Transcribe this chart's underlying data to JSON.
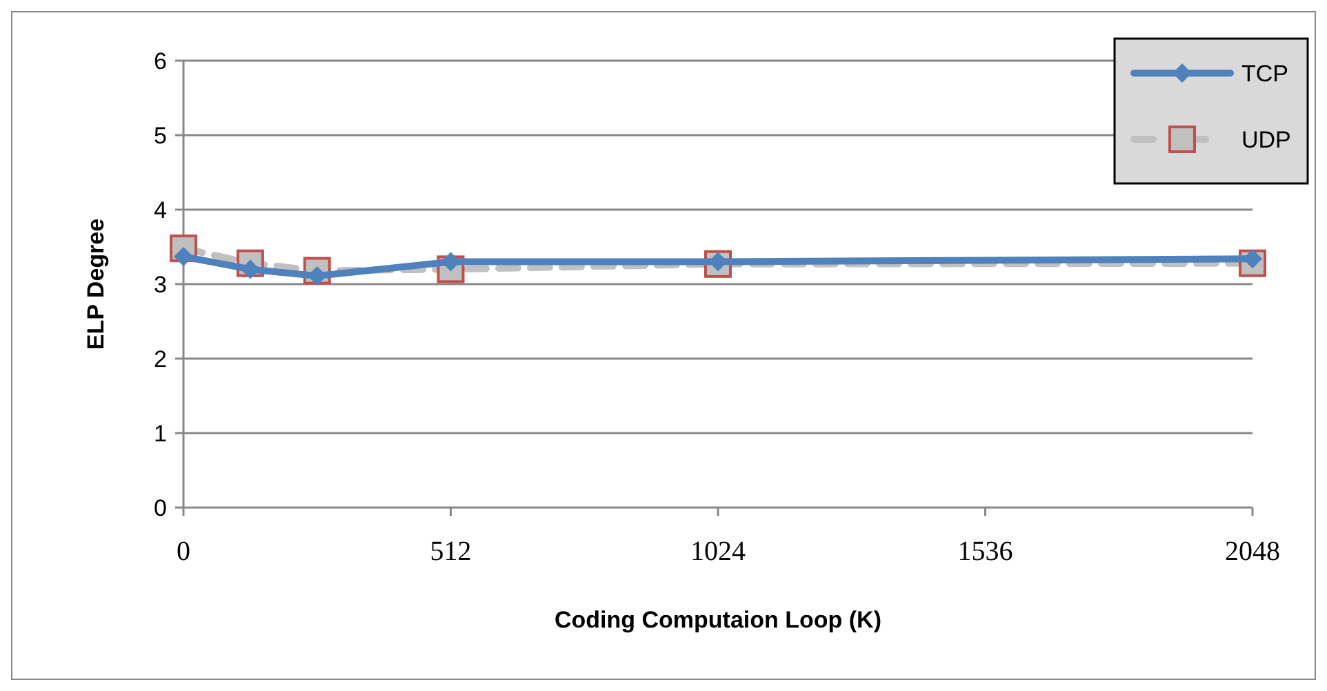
{
  "chart_data": {
    "type": "line",
    "xlabel": "Coding Computaion Loop (K)",
    "ylabel": "ELP Degree",
    "x": [
      0,
      128,
      256,
      512,
      1024,
      2048
    ],
    "series": [
      {
        "name": "TCP",
        "color": "#4f81bd",
        "marker": "diamond",
        "line_style": "solid",
        "values": [
          3.37,
          3.2,
          3.11,
          3.3,
          3.3,
          3.34
        ]
      },
      {
        "name": "UDP",
        "color": "#c0c0c0",
        "marker": "square",
        "line_style": "dashed",
        "values": [
          3.48,
          3.28,
          3.18,
          3.2,
          3.27,
          3.28
        ]
      }
    ],
    "xlim": [
      0,
      2048
    ],
    "xticks": [
      0,
      512,
      1024,
      1536,
      2048
    ],
    "ylim": [
      0,
      6
    ],
    "yticks": [
      0,
      1,
      2,
      3,
      4,
      5,
      6
    ],
    "grid": "y",
    "legend": "top right"
  }
}
